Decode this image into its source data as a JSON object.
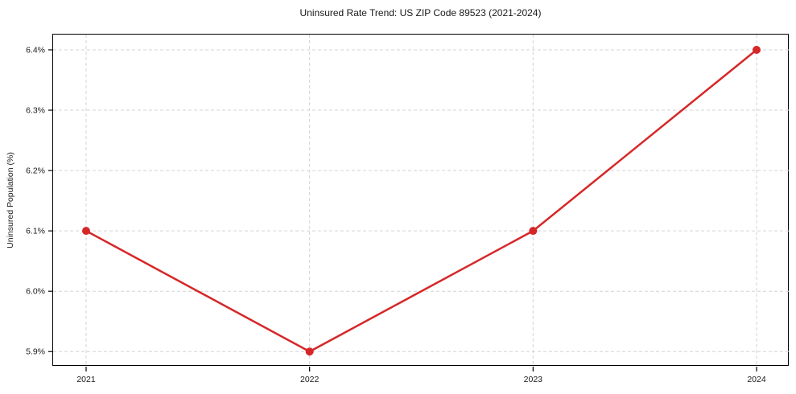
{
  "chart_data": {
    "type": "line",
    "title": "Uninsured Rate Trend: US ZIP Code 89523 (2021-2024)",
    "xlabel": "",
    "ylabel": "Uninsured Population (%)",
    "categories": [
      "2021",
      "2022",
      "2023",
      "2024"
    ],
    "series": [
      {
        "name": "Uninsured Rate",
        "values": [
          6.1,
          5.9,
          6.1,
          6.4
        ]
      }
    ],
    "y_tick_values": [
      5.9,
      6.0,
      6.1,
      6.2,
      6.3,
      6.4
    ],
    "y_tick_labels": [
      "5.9%",
      "6.0%",
      "6.1%",
      "6.2%",
      "6.3%",
      "6.4%"
    ],
    "x_tick_labels": [
      "2021",
      "2022",
      "2023",
      "2024"
    ],
    "ylim": [
      5.875,
      6.4253
    ],
    "grid": true,
    "legend_position": "none",
    "line_color": "#d62728",
    "marker": "circle",
    "marker_radius": 5,
    "line_width": 2.5,
    "grid_color": "#d3d3d3",
    "frame_color": "#000000"
  }
}
